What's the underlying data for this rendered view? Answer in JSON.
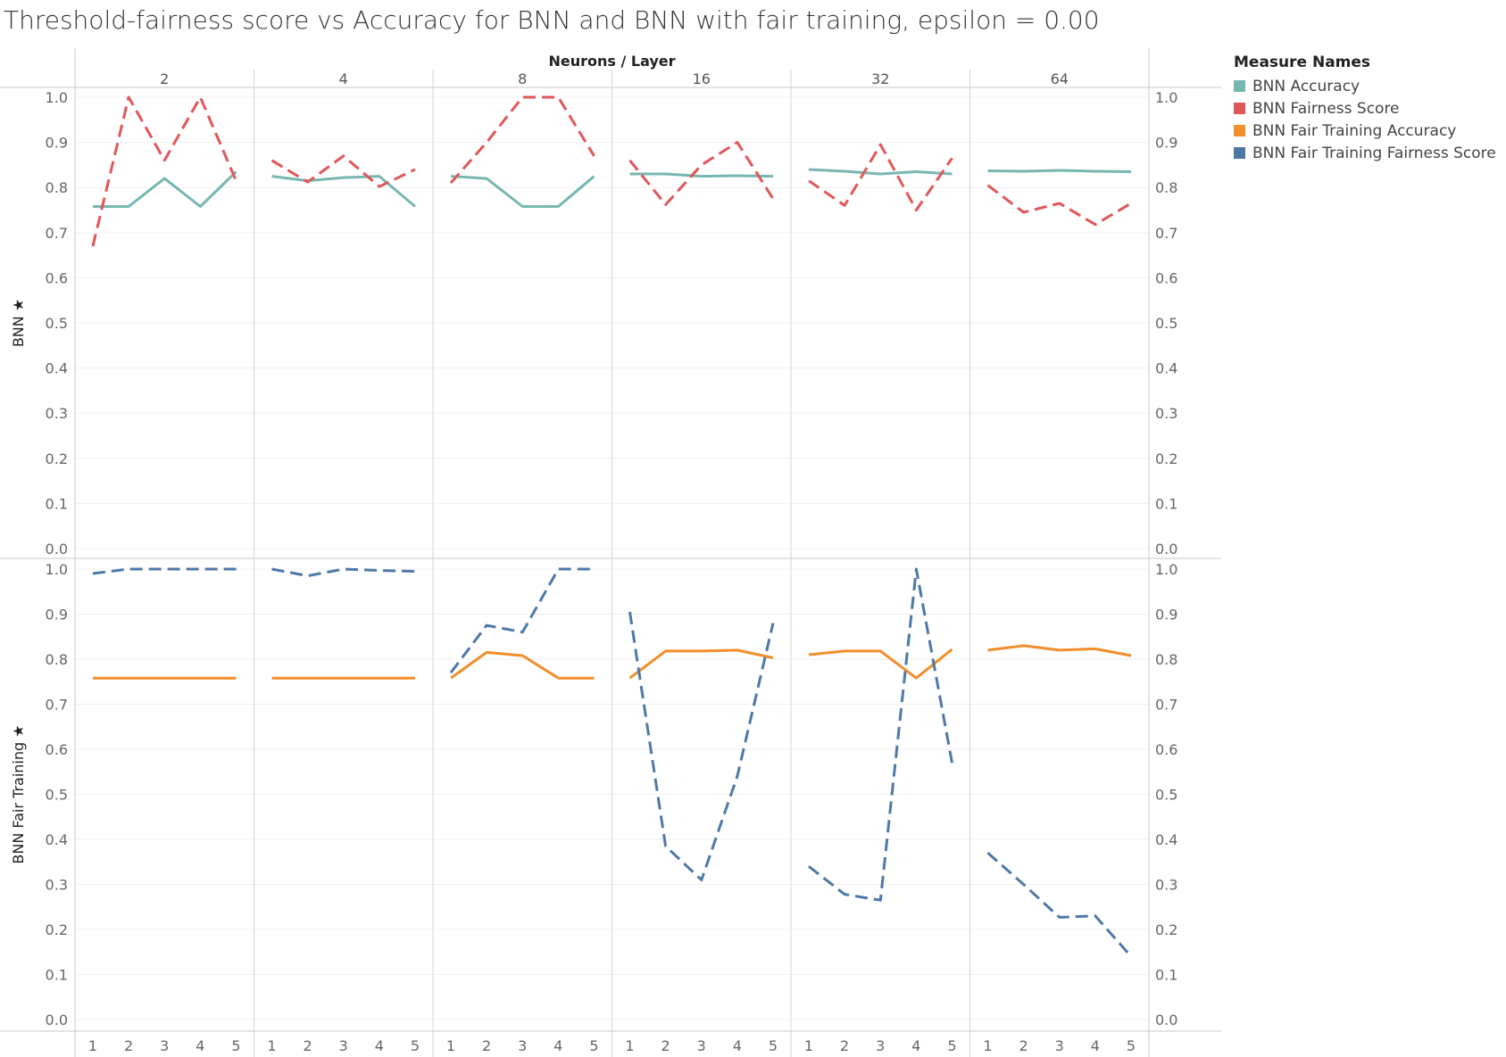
{
  "chart_data": {
    "type": "line",
    "title": "Threshold-fairness score vs Accuracy for BNN and BNN with fair training, epsilon = 0.00",
    "column_header": "Neurons / Layer",
    "columns": [
      "2",
      "4",
      "8",
      "16",
      "32",
      "64"
    ],
    "x": [
      "1",
      "2",
      "3",
      "4",
      "5"
    ],
    "ylim": [
      0,
      1.0
    ],
    "yticks": [
      "0.0",
      "0.1",
      "0.2",
      "0.3",
      "0.4",
      "0.5",
      "0.6",
      "0.7",
      "0.8",
      "0.9",
      "1.0"
    ],
    "grid": true,
    "legend_title": "Measure Names",
    "legend_position": "right",
    "legend": [
      {
        "name": "BNN Accuracy",
        "color": "#76b7b2"
      },
      {
        "name": "BNN Fairness Score",
        "color": "#e15759"
      },
      {
        "name": "BNN Fair Training Accuracy",
        "color": "#f28e2b"
      },
      {
        "name": "BNN Fair Training Fairness Score",
        "color": "#4e79a7"
      }
    ],
    "rows": [
      {
        "label": "BNN",
        "series": [
          {
            "name": "BNN Accuracy",
            "color": "#76b7b2",
            "dash": false,
            "values": [
              [
                0.758,
                0.758,
                0.82,
                0.758,
                0.835
              ],
              [
                0.825,
                0.815,
                0.822,
                0.825,
                0.758
              ],
              [
                0.825,
                0.82,
                0.758,
                0.758,
                0.825
              ],
              [
                0.83,
                0.83,
                0.825,
                0.826,
                0.825
              ],
              [
                0.84,
                0.836,
                0.83,
                0.835,
                0.83
              ],
              [
                0.837,
                0.836,
                0.838,
                0.836,
                0.835
              ]
            ]
          },
          {
            "name": "BNN Fairness Score",
            "color": "#e15759",
            "dash": true,
            "values": [
              [
                0.67,
                1.0,
                0.86,
                1.0,
                0.815
              ],
              [
                0.86,
                0.812,
                0.87,
                0.802,
                0.84
              ],
              [
                0.81,
                0.9,
                1.0,
                1.0,
                0.87
              ],
              [
                0.86,
                0.762,
                0.85,
                0.9,
                0.775
              ],
              [
                0.815,
                0.76,
                0.895,
                0.75,
                0.865
              ],
              [
                0.805,
                0.745,
                0.765,
                0.718,
                0.765
              ]
            ]
          }
        ]
      },
      {
        "label": "BNN Fair Training",
        "series": [
          {
            "name": "BNN Fair Training Accuracy",
            "color": "#f28e2b",
            "dash": false,
            "values": [
              [
                0.758,
                0.758,
                0.758,
                0.758,
                0.758
              ],
              [
                0.758,
                0.758,
                0.758,
                0.758,
                0.758
              ],
              [
                0.758,
                0.815,
                0.808,
                0.758,
                0.758
              ],
              [
                0.758,
                0.818,
                0.818,
                0.82,
                0.803
              ],
              [
                0.81,
                0.818,
                0.818,
                0.758,
                0.822
              ],
              [
                0.82,
                0.83,
                0.82,
                0.823,
                0.808
              ]
            ]
          },
          {
            "name": "BNN Fair Training Fairness Score",
            "color": "#4e79a7",
            "dash": true,
            "values": [
              [
                0.99,
                1.0,
                1.0,
                1.0,
                1.0
              ],
              [
                1.0,
                0.985,
                1.0,
                0.997,
                0.995
              ],
              [
                0.77,
                0.875,
                0.86,
                1.0,
                1.0
              ],
              [
                0.905,
                0.385,
                0.31,
                0.54,
                0.88
              ],
              [
                0.34,
                0.278,
                0.265,
                1.0,
                0.57
              ],
              [
                0.37,
                0.3,
                0.227,
                0.23,
                0.14
              ]
            ]
          }
        ]
      }
    ]
  }
}
